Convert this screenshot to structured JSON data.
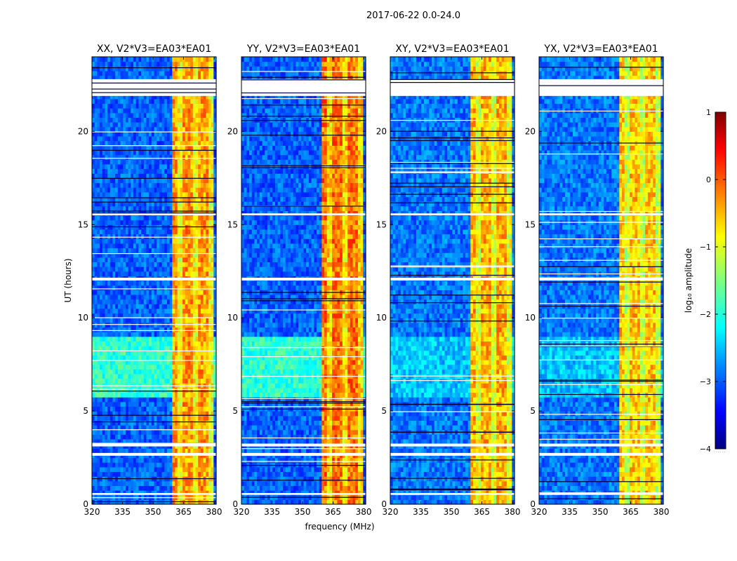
{
  "suptitle": "2017-06-22 0.0-24.0",
  "xlabel": "frequency (MHz)",
  "ylabel": "UT (hours)",
  "colorbar": {
    "label": "log₁₀ amplitude",
    "ticks": [
      "1",
      "0",
      "−1",
      "−2",
      "−3",
      "−4"
    ],
    "tick_values": [
      1,
      0,
      -1,
      -2,
      -3,
      -4
    ],
    "range": [
      -4,
      1
    ],
    "colormap": "jet",
    "dots": "......"
  },
  "chart_data": [
    {
      "type": "heatmap",
      "title": "XX, V2*V3=EA03*EA01",
      "xlim": [
        320,
        381
      ],
      "ylim": [
        0,
        24
      ],
      "xticks": [
        320,
        335,
        350,
        365,
        380
      ],
      "yticks": [
        0,
        5,
        10,
        15,
        20
      ],
      "z_range": [
        -4,
        1
      ],
      "background_level": -2.9,
      "bright_time_block": {
        "from_hours": 5.7,
        "to_hours": 9.1,
        "level": -1.9
      },
      "rfi_band_MHz": [
        359,
        380
      ],
      "rfi_level": -0.4,
      "flagged_rows_hours": [
        [
          21.9,
          22.8
        ],
        [
          15.5,
          15.6
        ],
        [
          12.0,
          12.15
        ],
        [
          3.1,
          3.25
        ],
        [
          2.6,
          2.75
        ],
        [
          0.5,
          0.6
        ]
      ]
    },
    {
      "type": "heatmap",
      "title": "YY, V2*V3=EA03*EA01",
      "xlim": [
        320,
        381
      ],
      "ylim": [
        0,
        24
      ],
      "xticks": [
        320,
        335,
        350,
        365,
        380
      ],
      "yticks": [
        0,
        5,
        10,
        15,
        20
      ],
      "z_range": [
        -4,
        1
      ],
      "background_level": -2.9,
      "bright_time_block": {
        "from_hours": 5.7,
        "to_hours": 9.1,
        "level": -1.9
      },
      "rfi_band_MHz": [
        359,
        380
      ],
      "rfi_level": -0.2,
      "flagged_rows_hours": [
        [
          21.9,
          22.8
        ],
        [
          15.5,
          15.6
        ],
        [
          12.0,
          12.15
        ],
        [
          3.1,
          3.25
        ],
        [
          2.6,
          2.75
        ],
        [
          0.5,
          0.6
        ]
      ]
    },
    {
      "type": "heatmap",
      "title": "XY, V2*V3=EA03*EA01",
      "xlim": [
        320,
        381
      ],
      "ylim": [
        0,
        24
      ],
      "xticks": [
        320,
        335,
        350,
        365,
        380
      ],
      "yticks": [
        0,
        5,
        10,
        15,
        20
      ],
      "z_range": [
        -4,
        1
      ],
      "background_level": -2.8,
      "bright_time_block": {
        "from_hours": 5.7,
        "to_hours": 9.1,
        "level": -2.4
      },
      "rfi_band_MHz": [
        359,
        380
      ],
      "rfi_level": -0.5,
      "flagged_rows_hours": [
        [
          21.9,
          22.8
        ],
        [
          15.5,
          15.6
        ],
        [
          12.0,
          12.15
        ],
        [
          3.1,
          3.25
        ],
        [
          2.6,
          2.75
        ],
        [
          0.5,
          0.6
        ]
      ]
    },
    {
      "type": "heatmap",
      "title": "YX, V2*V3=EA03*EA01",
      "xlim": [
        320,
        381
      ],
      "ylim": [
        0,
        24
      ],
      "xticks": [
        320,
        335,
        350,
        365,
        380
      ],
      "yticks": [
        0,
        5,
        10,
        15,
        20
      ],
      "z_range": [
        -4,
        1
      ],
      "background_level": -2.8,
      "bright_time_block": {
        "from_hours": 5.7,
        "to_hours": 9.1,
        "level": -2.4
      },
      "rfi_band_MHz": [
        359,
        380
      ],
      "rfi_level": -0.6,
      "flagged_rows_hours": [
        [
          21.9,
          22.8
        ],
        [
          15.5,
          15.6
        ],
        [
          12.0,
          12.15
        ],
        [
          3.1,
          3.25
        ],
        [
          2.6,
          2.75
        ],
        [
          0.5,
          0.6
        ]
      ]
    }
  ]
}
